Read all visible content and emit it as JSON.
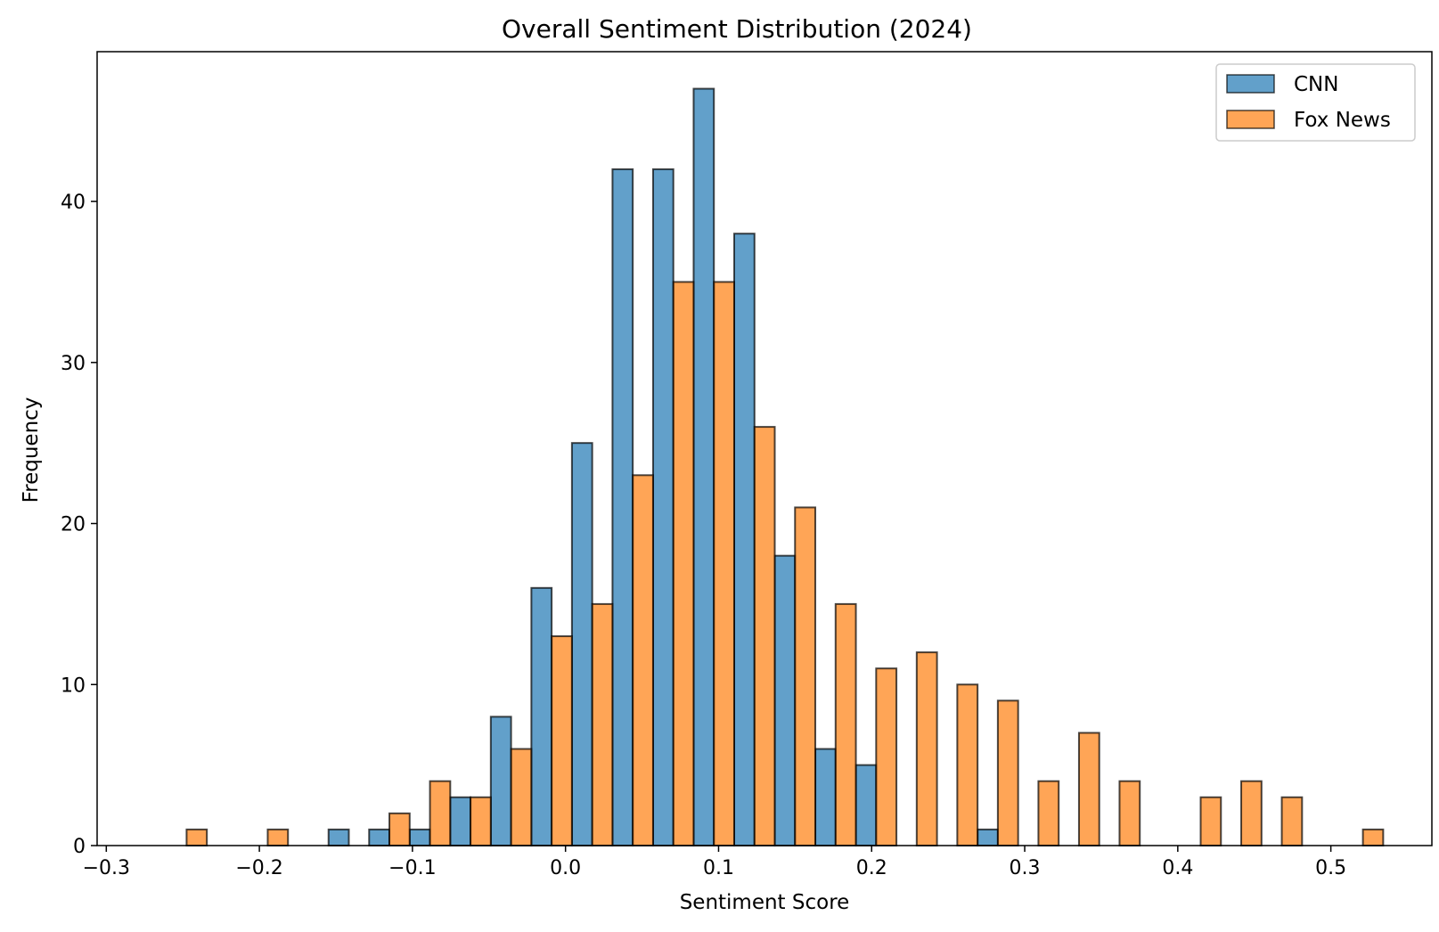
{
  "chart_data": {
    "type": "bar",
    "title": "Overall Sentiment Distribution (2024)",
    "xlabel": "Sentiment Score",
    "ylabel": "Frequency",
    "xlim": [
      -0.306,
      0.566
    ],
    "ylim": [
      0,
      49.3
    ],
    "x_ticks": [
      {
        "value": -0.3,
        "label": "−0.3"
      },
      {
        "value": -0.2,
        "label": "−0.2"
      },
      {
        "value": -0.1,
        "label": "−0.1"
      },
      {
        "value": 0.0,
        "label": "0.0"
      },
      {
        "value": 0.1,
        "label": "0.1"
      },
      {
        "value": 0.2,
        "label": "0.2"
      },
      {
        "value": 0.3,
        "label": "0.3"
      },
      {
        "value": 0.4,
        "label": "0.4"
      },
      {
        "value": 0.5,
        "label": "0.5"
      }
    ],
    "y_ticks": [
      {
        "value": 0,
        "label": "0"
      },
      {
        "value": 10,
        "label": "10"
      },
      {
        "value": 20,
        "label": "20"
      },
      {
        "value": 30,
        "label": "30"
      },
      {
        "value": 40,
        "label": "40"
      }
    ],
    "grid": false,
    "legend_position": "top-right",
    "bin_start": -0.2608,
    "bin_width": 0.0265,
    "series": [
      {
        "name": "CNN",
        "color": "#1f77b4",
        "values": [
          0,
          0,
          0,
          0,
          1,
          1,
          1,
          3,
          8,
          16,
          25,
          42,
          42,
          47,
          38,
          18,
          6,
          5,
          0,
          0,
          1,
          0,
          0,
          0,
          0,
          0,
          0,
          0,
          0,
          0,
          0
        ]
      },
      {
        "name": "Fox News",
        "color": "#ff7f0e",
        "values": [
          1,
          0,
          1,
          0,
          0,
          2,
          4,
          3,
          6,
          13,
          15,
          23,
          35,
          35,
          26,
          21,
          15,
          11,
          12,
          10,
          9,
          4,
          7,
          4,
          0,
          3,
          4,
          3,
          0,
          1,
          0
        ]
      }
    ],
    "bar_alpha": 0.7,
    "edge_color": "#000000"
  }
}
